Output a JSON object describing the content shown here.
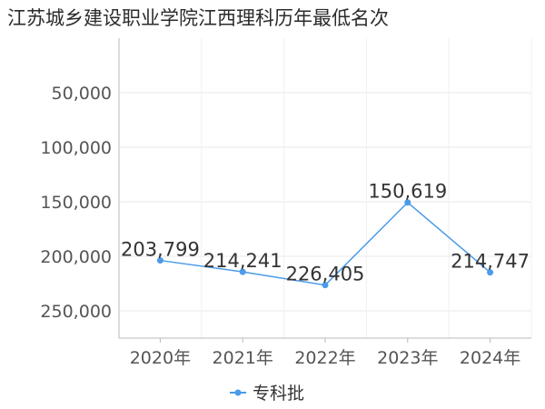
{
  "chart_data": {
    "type": "line",
    "title": "江苏城乡建设职业学院江西理科历年最低名次",
    "categories": [
      "2020年",
      "2021年",
      "2022年",
      "2023年",
      "2024年"
    ],
    "series": [
      {
        "name": "专科批",
        "values": [
          203799,
          214241,
          226405,
          150619,
          214747
        ],
        "labels": [
          "203,799",
          "214,241",
          "226,405",
          "150,619",
          "214,747"
        ]
      }
    ],
    "y_ticks": [
      50000,
      100000,
      150000,
      200000,
      250000
    ],
    "y_tick_labels": [
      "50,000",
      "100,000",
      "150,000",
      "200,000",
      "250,000"
    ],
    "ylim": [
      0,
      275000
    ],
    "y_inverted": true,
    "grid": true,
    "legend_position": "bottom",
    "colors": {
      "series": "#4a9be8",
      "grid": "#e8e8e8",
      "axis": "#b8b8b8"
    }
  }
}
